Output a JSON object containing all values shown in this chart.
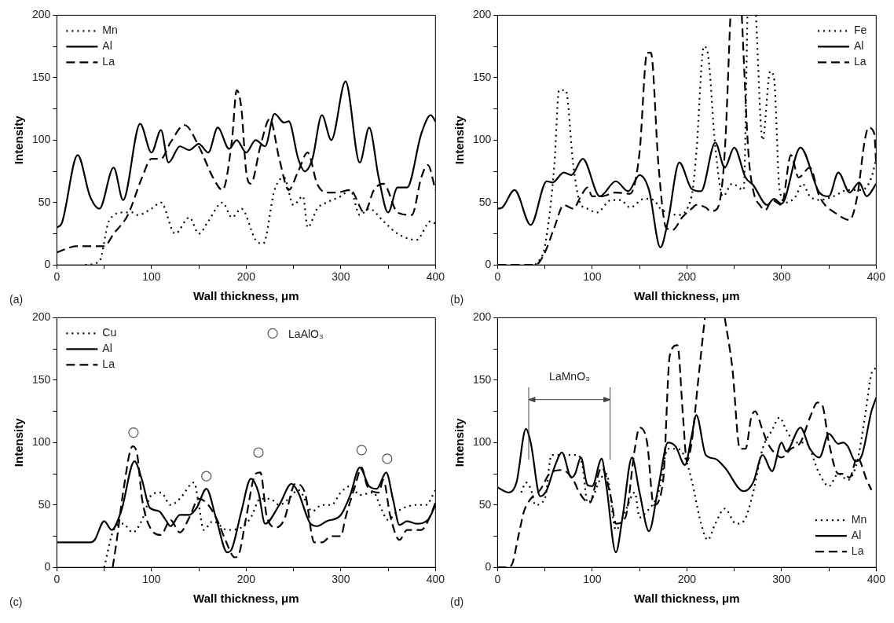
{
  "chart_data": [
    {
      "type": "line",
      "xlabel": "Wall thickness, μm",
      "ylabel": "Intensity",
      "xlim": [
        0,
        400
      ],
      "ylim": [
        0,
        200
      ],
      "xticks": [
        0,
        {
          "value": 50,
          "label": null
        },
        100,
        {
          "value": 150,
          "label": null
        },
        200,
        {
          "value": 250,
          "label": null
        },
        300,
        {
          "value": 350,
          "label": null
        },
        400
      ],
      "yticks": [
        0,
        {
          "value": 25,
          "label": null
        },
        50,
        {
          "value": 75,
          "label": null
        },
        100,
        {
          "value": 125,
          "label": null
        },
        150,
        {
          "value": 175,
          "label": null
        },
        200
      ],
      "legend": "top left",
      "marker": "none",
      "annotations": [
        "(a)"
      ],
      "series": [
        {
          "name": "Mn",
          "color": "#000000",
          "line_style": "dotted",
          "x": [
            30,
            45,
            55,
            70,
            80,
            85,
            100,
            110,
            125,
            140,
            150,
            160,
            175,
            185,
            195,
            210,
            218,
            230,
            240,
            250,
            260,
            265,
            275,
            285,
            300,
            310,
            320,
            330,
            345,
            360,
            380,
            395,
            400
          ],
          "values": [
            0,
            3,
            35,
            42,
            42,
            40,
            45,
            50,
            25,
            38,
            25,
            35,
            50,
            38,
            45,
            20,
            17,
            60,
            70,
            48,
            55,
            30,
            45,
            50,
            55,
            60,
            40,
            45,
            35,
            25,
            20,
            35,
            33
          ]
        },
        {
          "name": "Al",
          "color": "#000000",
          "line_style": "solid",
          "x": [
            0,
            5,
            22,
            35,
            45,
            60,
            70,
            88,
            100,
            110,
            118,
            130,
            140,
            150,
            160,
            170,
            182,
            190,
            200,
            210,
            220,
            230,
            240,
            245,
            255,
            262,
            270,
            280,
            290,
            305,
            320,
            330,
            340,
            350,
            360,
            370,
            385,
            395,
            400
          ],
          "values": [
            30,
            33,
            88,
            55,
            45,
            78,
            52,
            113,
            90,
            108,
            82,
            95,
            92,
            97,
            90,
            110,
            93,
            100,
            90,
            100,
            95,
            121,
            114,
            115,
            85,
            75,
            85,
            120,
            100,
            147,
            82,
            110,
            70,
            42,
            62,
            62,
            105,
            120,
            115
          ]
        },
        {
          "name": "La",
          "color": "#000000",
          "line_style": "dashed",
          "x": [
            0,
            10,
            20,
            50,
            60,
            75,
            90,
            100,
            110,
            120,
            135,
            150,
            165,
            175,
            185,
            190,
            195,
            200,
            205,
            215,
            225,
            235,
            245,
            255,
            265,
            275,
            285,
            295,
            310,
            325,
            335,
            345,
            360,
            375,
            385,
            392,
            400
          ],
          "values": [
            10,
            13,
            15,
            15,
            25,
            40,
            70,
            85,
            85,
            98,
            112,
            95,
            70,
            60,
            100,
            140,
            125,
            75,
            65,
            95,
            117,
            85,
            60,
            75,
            90,
            65,
            58,
            58,
            60,
            42,
            60,
            65,
            42,
            40,
            70,
            80,
            60
          ]
        }
      ]
    },
    {
      "type": "line",
      "xlabel": "Wall thickness, μm",
      "ylabel": "Intensity",
      "xlim": [
        0,
        400
      ],
      "ylim": [
        0,
        200
      ],
      "xticks": [
        0,
        {
          "value": 50,
          "label": null
        },
        100,
        {
          "value": 150,
          "label": null
        },
        200,
        {
          "value": 250,
          "label": null
        },
        300,
        {
          "value": 350,
          "label": null
        },
        400
      ],
      "yticks": [
        0,
        {
          "value": 25,
          "label": null
        },
        50,
        {
          "value": 75,
          "label": null
        },
        100,
        {
          "value": 125,
          "label": null
        },
        150,
        {
          "value": 175,
          "label": null
        },
        200
      ],
      "legend": "top right",
      "marker": "none",
      "annotations": [
        "(b)"
      ],
      "series": [
        {
          "name": "Fe",
          "color": "#000000",
          "line_style": "dotted",
          "x": [
            40,
            50,
            60,
            65,
            72,
            80,
            87,
            95,
            105,
            120,
            130,
            140,
            155,
            165,
            172,
            180,
            190,
            205,
            210,
            218,
            222,
            230,
            238,
            248,
            260,
            264,
            268,
            273,
            280,
            288,
            292,
            298,
            305,
            315,
            322,
            330,
            340,
            355,
            370,
            385,
            395,
            400
          ],
          "values": [
            0,
            15,
            80,
            140,
            140,
            80,
            50,
            45,
            42,
            52,
            52,
            46,
            53,
            52,
            45,
            42,
            40,
            55,
            90,
            175,
            170,
            95,
            55,
            65,
            60,
            200,
            null,
            200,
            100,
            155,
            150,
            60,
            50,
            55,
            65,
            55,
            52,
            55,
            60,
            60,
            70,
            85
          ]
        },
        {
          "name": "Al",
          "color": "#000000",
          "line_style": "solid",
          "x": [
            0,
            5,
            18,
            35,
            52,
            58,
            70,
            78,
            90,
            108,
            125,
            138,
            150,
            160,
            172,
            180,
            192,
            205,
            215,
            230,
            240,
            250,
            262,
            270,
            285,
            292,
            300,
            320,
            340,
            350,
            360,
            372,
            382,
            390,
            400
          ],
          "values": [
            45,
            46,
            60,
            32,
            67,
            66,
            74,
            72,
            85,
            55,
            67,
            59,
            72,
            60,
            14,
            35,
            82,
            61,
            59,
            98,
            78,
            94,
            70,
            64,
            48,
            53,
            49,
            94,
            58,
            55,
            74,
            58,
            66,
            55,
            65
          ]
        },
        {
          "name": "La",
          "color": "#000000",
          "line_style": "dashed",
          "x": [
            0,
            10,
            25,
            40,
            50,
            60,
            70,
            80,
            88,
            95,
            100,
            110,
            125,
            140,
            150,
            158,
            162,
            170,
            178,
            185,
            195,
            205,
            210,
            220,
            225,
            232,
            240,
            246,
            252,
            258,
            265,
            270,
            278,
            283,
            290,
            300,
            310,
            318,
            330,
            340,
            360,
            372,
            380,
            388,
            392,
            398,
            400
          ],
          "values": [
            0,
            0,
            0,
            0,
            10,
            30,
            48,
            45,
            55,
            62,
            55,
            55,
            58,
            57,
            90,
            170,
            170,
            80,
            30,
            28,
            38,
            45,
            48,
            46,
            43,
            45,
            90,
            200,
            null,
            200,
            90,
            60,
            47,
            44,
            52,
            48,
            88,
            70,
            78,
            55,
            40,
            36,
            55,
            100,
            110,
            105,
            80
          ]
        }
      ]
    },
    {
      "type": "line",
      "xlabel": "Wall thickness, μm",
      "ylabel": "Intensity",
      "xlim": [
        0,
        400
      ],
      "ylim": [
        0,
        200
      ],
      "xticks": [
        0,
        {
          "value": 50,
          "label": null
        },
        100,
        {
          "value": 150,
          "label": null
        },
        200,
        {
          "value": 250,
          "label": null
        },
        300,
        {
          "value": 350,
          "label": null
        },
        400
      ],
      "yticks": [
        0,
        {
          "value": 25,
          "label": null
        },
        50,
        {
          "value": 75,
          "label": null
        },
        100,
        {
          "value": 125,
          "label": null
        },
        150,
        {
          "value": 175,
          "label": null
        },
        200
      ],
      "legend": "top left",
      "marker": "none",
      "annotations": [
        "(c)"
      ],
      "series": [
        {
          "name": "Cu",
          "color": "#000000",
          "line_style": "dotted",
          "x": [
            50,
            60,
            70,
            80,
            90,
            100,
            110,
            120,
            130,
            145,
            150,
            155,
            165,
            180,
            195,
            205,
            215,
            225,
            235,
            245,
            255,
            270,
            280,
            290,
            300,
            310,
            320,
            335,
            340,
            350,
            360,
            380,
            390,
            400
          ],
          "values": [
            0,
            30,
            35,
            28,
            38,
            58,
            60,
            50,
            55,
            68,
            50,
            30,
            37,
            30,
            32,
            40,
            55,
            55,
            50,
            55,
            62,
            45,
            50,
            50,
            60,
            65,
            58,
            60,
            52,
            38,
            45,
            50,
            50,
            62
          ]
        },
        {
          "name": "Al",
          "color": "#000000",
          "line_style": "solid",
          "x": [
            0,
            35,
            40,
            50,
            58,
            68,
            82,
            90,
            98,
            108,
            115,
            120,
            130,
            140,
            148,
            158,
            168,
            180,
            185,
            195,
            205,
            213,
            220,
            235,
            248,
            255,
            268,
            275,
            285,
            300,
            310,
            320,
            330,
            338,
            348,
            355,
            362,
            370,
            380,
            392,
            400
          ],
          "values": [
            20,
            20,
            22,
            37,
            30,
            45,
            85,
            70,
            48,
            45,
            38,
            33,
            42,
            42,
            48,
            63,
            40,
            12,
            15,
            45,
            71,
            60,
            35,
            50,
            67,
            60,
            35,
            33,
            37,
            42,
            58,
            80,
            65,
            63,
            76,
            55,
            34,
            37,
            35,
            38,
            50
          ]
        },
        {
          "name": "La",
          "color": "#000000",
          "line_style": "dashed",
          "x": [
            59,
            63,
            70,
            80,
            85,
            90,
            100,
            110,
            120,
            130,
            140,
            150,
            160,
            170,
            178,
            188,
            192,
            200,
            210,
            215,
            222,
            232,
            240,
            252,
            262,
            272,
            280,
            290,
            300,
            305,
            315,
            322,
            328,
            340,
            345,
            352,
            362,
            370,
            385,
            395,
            400
          ],
          "values": [
            0,
            20,
            60,
            97,
            90,
            55,
            30,
            26,
            38,
            28,
            40,
            55,
            50,
            37,
            22,
            8,
            10,
            40,
            75,
            76,
            40,
            32,
            38,
            67,
            60,
            20,
            20,
            25,
            25,
            40,
            65,
            80,
            65,
            60,
            70,
            42,
            22,
            30,
            30,
            42,
            52
          ]
        },
        {
          "name": "LaAlO₃",
          "type": "scatter",
          "marker": "circle",
          "color": "#555555",
          "x": [
            81,
            158,
            213,
            322,
            349
          ],
          "values": [
            108,
            73,
            92,
            94,
            87
          ]
        }
      ]
    },
    {
      "type": "line",
      "xlabel": "Wall thickness, μm",
      "ylabel": "Intensity",
      "xlim": [
        0,
        400
      ],
      "ylim": [
        0,
        200
      ],
      "xticks": [
        0,
        {
          "value": 50,
          "label": null
        },
        100,
        {
          "value": 150,
          "label": null
        },
        200,
        {
          "value": 250,
          "label": null
        },
        300,
        {
          "value": 350,
          "label": null
        },
        400
      ],
      "yticks": [
        0,
        {
          "value": 25,
          "label": null
        },
        50,
        {
          "value": 75,
          "label": null
        },
        100,
        {
          "value": 125,
          "label": null
        },
        150,
        {
          "value": 175,
          "label": null
        },
        200
      ],
      "legend": "bottom right",
      "marker": "none",
      "annotations": [
        "(d)",
        "LaMnO₃"
      ],
      "series": [
        {
          "name": "Mn",
          "color": "#000000",
          "line_style": "dotted",
          "x": [
            25,
            30,
            35,
            40,
            50,
            57,
            70,
            85,
            90,
            95,
            100,
            108,
            115,
            125,
            135,
            145,
            150,
            158,
            170,
            180,
            190,
            198,
            205,
            215,
            222,
            230,
            240,
            252,
            260,
            270,
            280,
            290,
            298,
            305,
            315,
            325,
            340,
            350,
            360,
            370,
            380,
            388,
            395,
            400
          ],
          "values": [
            60,
            68,
            63,
            50,
            55,
            90,
            90,
            90,
            80,
            52,
            55,
            70,
            75,
            30,
            45,
            60,
            40,
            45,
            60,
            95,
            95,
            88,
            70,
            35,
            22,
            35,
            47,
            35,
            37,
            60,
            95,
            110,
            120,
            110,
            100,
            100,
            75,
            65,
            75,
            70,
            85,
            120,
            155,
            160
          ]
        },
        {
          "name": "Al",
          "color": "#000000",
          "line_style": "solid",
          "x": [
            0,
            12,
            20,
            30,
            35,
            45,
            52,
            60,
            68,
            78,
            82,
            88,
            95,
            100,
            110,
            115,
            125,
            132,
            142,
            150,
            160,
            170,
            180,
            188,
            198,
            205,
            210,
            220,
            230,
            240,
            260,
            270,
            280,
            290,
            300,
            305,
            320,
            330,
            340,
            350,
            360,
            365,
            370,
            378,
            385,
            395,
            400
          ],
          "values": [
            64,
            60,
            68,
            111,
            100,
            57,
            62,
            80,
            92,
            72,
            75,
            88,
            66,
            65,
            87,
            65,
            12,
            40,
            88,
            60,
            29,
            65,
            100,
            97,
            82,
            105,
            122,
            90,
            87,
            80,
            61,
            68,
            90,
            77,
            100,
            93,
            112,
            95,
            88,
            107,
            99,
            100,
            97,
            85,
            90,
            125,
            136
          ]
        },
        {
          "name": "La",
          "color": "#000000",
          "line_style": "dashed",
          "x": [
            0,
            10,
            15,
            22,
            28,
            35,
            45,
            55,
            68,
            80,
            85,
            92,
            98,
            103,
            110,
            120,
            125,
            135,
            145,
            150,
            158,
            165,
            175,
            182,
            190,
            196,
            200,
            205,
            212,
            219,
            230,
            240,
            248,
            256,
            262,
            268,
            272,
            280,
            285,
            295,
            300,
            310,
            320,
            330,
            338,
            343,
            350,
            360,
            365,
            372,
            380,
            390,
            395
          ],
          "values": [
            0,
            0,
            2,
            25,
            45,
            55,
            62,
            75,
            78,
            70,
            62,
            54,
            52,
            65,
            80,
            55,
            35,
            40,
            95,
            112,
            100,
            50,
            70,
            170,
            178,
            120,
            85,
            100,
            150,
            200,
            null,
            200,
            160,
            95,
            95,
            120,
            125,
            110,
            100,
            90,
            88,
            95,
            100,
            120,
            132,
            130,
            100,
            75,
            75,
            72,
            88,
            70,
            62
          ]
        }
      ]
    }
  ]
}
